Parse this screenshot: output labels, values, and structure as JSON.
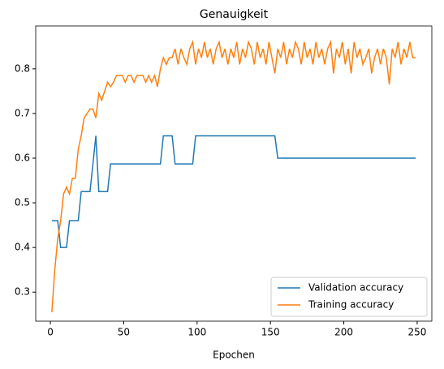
{
  "chart_data": {
    "type": "line",
    "title": "Genauigkeit",
    "xlabel": "Epochen",
    "x": [
      1,
      3,
      5,
      7,
      9,
      11,
      13,
      15,
      17,
      19,
      21,
      23,
      25,
      27,
      29,
      31,
      33,
      35,
      37,
      39,
      41,
      43,
      45,
      47,
      49,
      51,
      53,
      55,
      57,
      59,
      61,
      63,
      65,
      67,
      69,
      71,
      73,
      75,
      77,
      79,
      81,
      83,
      85,
      87,
      89,
      91,
      93,
      95,
      97,
      99,
      101,
      103,
      105,
      107,
      109,
      111,
      113,
      115,
      117,
      119,
      121,
      123,
      125,
      127,
      129,
      131,
      133,
      135,
      137,
      139,
      141,
      143,
      145,
      147,
      149,
      151,
      153,
      155,
      157,
      159,
      161,
      163,
      165,
      167,
      169,
      171,
      173,
      175,
      177,
      179,
      181,
      183,
      185,
      187,
      189,
      191,
      193,
      195,
      197,
      199,
      201,
      203,
      205,
      207,
      209,
      211,
      213,
      215,
      217,
      219,
      221,
      223,
      225,
      227,
      229,
      231,
      233,
      235,
      237,
      239,
      241,
      243,
      245,
      247,
      249
    ],
    "series": [
      {
        "name": "Validation accuracy",
        "color": "#1f77b4",
        "values": [
          0.46,
          0.46,
          0.46,
          0.4,
          0.4,
          0.4,
          0.46,
          0.46,
          0.46,
          0.46,
          0.525,
          0.525,
          0.525,
          0.525,
          0.587,
          0.65,
          0.525,
          0.525,
          0.525,
          0.525,
          0.587,
          0.587,
          0.587,
          0.587,
          0.587,
          0.587,
          0.587,
          0.587,
          0.587,
          0.587,
          0.587,
          0.587,
          0.587,
          0.587,
          0.587,
          0.587,
          0.587,
          0.587,
          0.65,
          0.65,
          0.65,
          0.65,
          0.587,
          0.587,
          0.587,
          0.587,
          0.587,
          0.587,
          0.587,
          0.65,
          0.65,
          0.65,
          0.65,
          0.65,
          0.65,
          0.65,
          0.65,
          0.65,
          0.65,
          0.65,
          0.65,
          0.65,
          0.65,
          0.65,
          0.65,
          0.65,
          0.65,
          0.65,
          0.65,
          0.65,
          0.65,
          0.65,
          0.65,
          0.65,
          0.65,
          0.65,
          0.65,
          0.6,
          0.6,
          0.6,
          0.6,
          0.6,
          0.6,
          0.6,
          0.6,
          0.6,
          0.6,
          0.6,
          0.6,
          0.6,
          0.6,
          0.6,
          0.6,
          0.6,
          0.6,
          0.6,
          0.6,
          0.6,
          0.6,
          0.6,
          0.6,
          0.6,
          0.6,
          0.6,
          0.6,
          0.6,
          0.6,
          0.6,
          0.6,
          0.6,
          0.6,
          0.6,
          0.6,
          0.6,
          0.6,
          0.6,
          0.6,
          0.6,
          0.6,
          0.6,
          0.6,
          0.6,
          0.6,
          0.6,
          0.6
        ]
      },
      {
        "name": "Training accuracy",
        "color": "#ff7f0e",
        "values": [
          0.255,
          0.35,
          0.42,
          0.46,
          0.52,
          0.535,
          0.52,
          0.555,
          0.555,
          0.62,
          0.65,
          0.69,
          0.7,
          0.71,
          0.71,
          0.69,
          0.745,
          0.73,
          0.75,
          0.77,
          0.76,
          0.77,
          0.785,
          0.785,
          0.785,
          0.77,
          0.785,
          0.785,
          0.77,
          0.785,
          0.785,
          0.785,
          0.77,
          0.785,
          0.77,
          0.785,
          0.76,
          0.8,
          0.825,
          0.81,
          0.825,
          0.825,
          0.845,
          0.81,
          0.845,
          0.825,
          0.81,
          0.845,
          0.86,
          0.81,
          0.845,
          0.825,
          0.86,
          0.825,
          0.845,
          0.81,
          0.845,
          0.86,
          0.825,
          0.845,
          0.81,
          0.845,
          0.825,
          0.86,
          0.81,
          0.845,
          0.825,
          0.86,
          0.845,
          0.81,
          0.86,
          0.825,
          0.845,
          0.81,
          0.86,
          0.825,
          0.79,
          0.845,
          0.825,
          0.86,
          0.81,
          0.845,
          0.825,
          0.86,
          0.845,
          0.81,
          0.86,
          0.825,
          0.845,
          0.81,
          0.86,
          0.825,
          0.845,
          0.81,
          0.845,
          0.86,
          0.79,
          0.845,
          0.825,
          0.86,
          0.81,
          0.845,
          0.79,
          0.86,
          0.825,
          0.845,
          0.81,
          0.825,
          0.845,
          0.79,
          0.825,
          0.845,
          0.81,
          0.845,
          0.825,
          0.765,
          0.845,
          0.825,
          0.86,
          0.81,
          0.845,
          0.825,
          0.86,
          0.825,
          0.825
        ]
      }
    ],
    "xlim": [
      -10,
      260
    ],
    "ylim": [
      0.235,
      0.896
    ],
    "xticks": [
      0,
      50,
      100,
      150,
      200,
      250
    ],
    "yticks": [
      0.3,
      0.4,
      0.5,
      0.6,
      0.7,
      0.8
    ],
    "legend": "lower right"
  }
}
